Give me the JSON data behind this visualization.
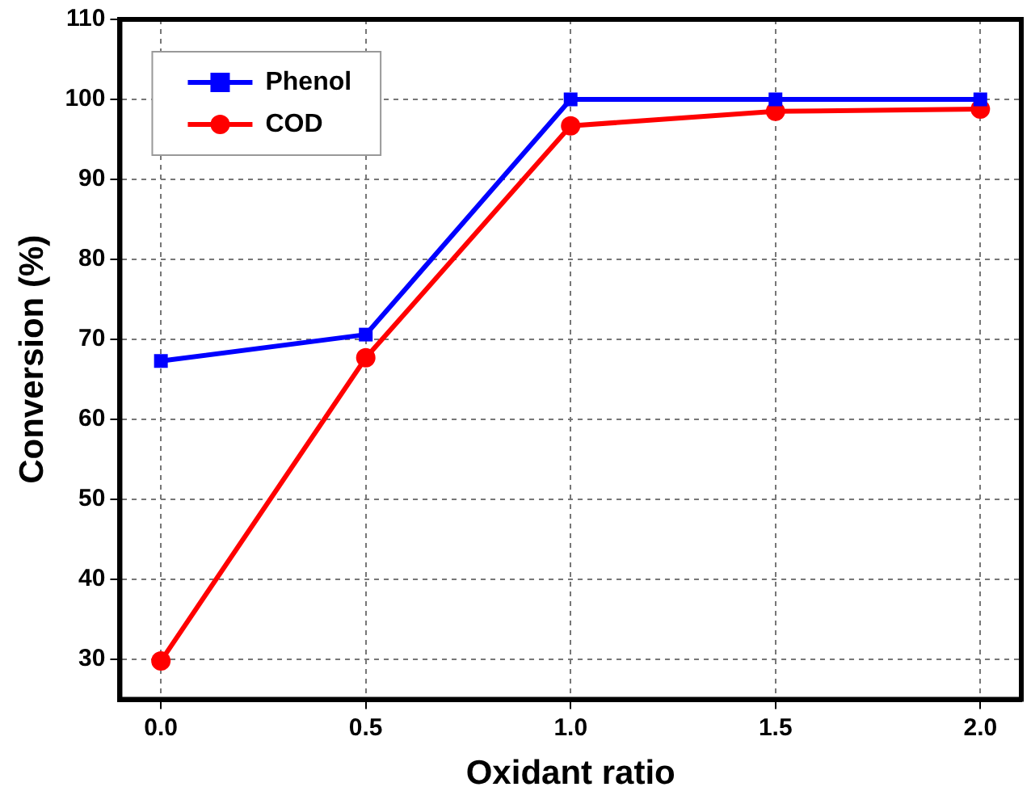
{
  "chart_data": {
    "type": "line",
    "xlabel": "Oxidant ratio",
    "ylabel": "Conversion (%)",
    "x": [
      0,
      0.5,
      1,
      1.5,
      2
    ],
    "series": [
      {
        "name": "Phenol",
        "color": "#0000ff",
        "marker": "square",
        "values": [
          67.3,
          70.6,
          100,
          100,
          100
        ]
      },
      {
        "name": "COD",
        "color": "#ff0000",
        "marker": "circle",
        "values": [
          29.8,
          67.7,
          96.7,
          98.5,
          98.8
        ]
      }
    ],
    "xlim": [
      -0.1,
      2.1
    ],
    "xticks": [
      {
        "value": 0,
        "label": "0.0"
      },
      {
        "value": 0.5,
        "label": "0.5"
      },
      {
        "value": 1,
        "label": "1.0"
      },
      {
        "value": 1.5,
        "label": "1.5"
      },
      {
        "value": 2,
        "label": "2.0"
      }
    ],
    "ylim": [
      25,
      110
    ],
    "yticks": [
      30,
      40,
      50,
      60,
      70,
      80,
      90,
      100,
      110
    ],
    "grid": true,
    "legend": "top left",
    "line_style": "solid"
  }
}
